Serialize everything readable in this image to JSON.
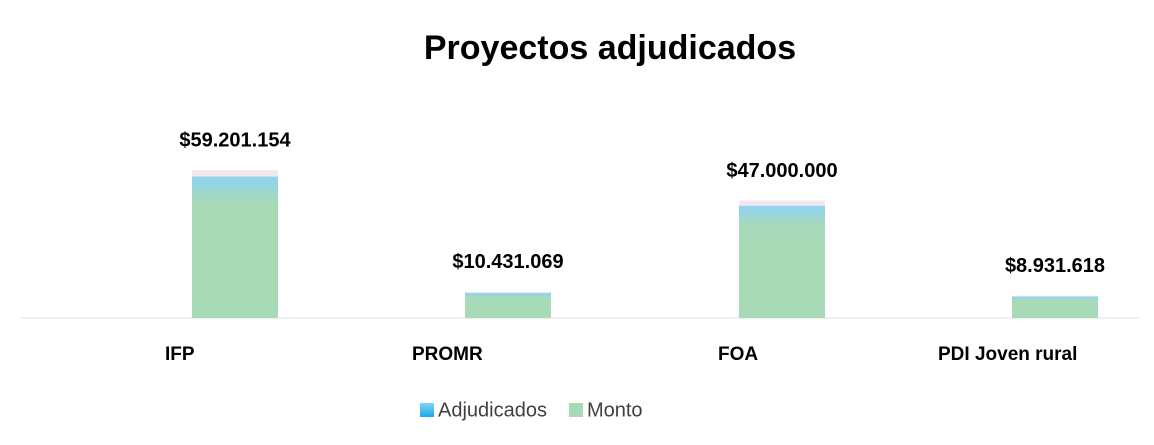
{
  "chart_data": {
    "type": "bar",
    "title": "Proyectos adjudicados",
    "categories": [
      "IFP",
      "PROMR",
      "FOA",
      "PDI Joven rural"
    ],
    "series": [
      {
        "name": "Adjudicados",
        "color": "#3cc0ee",
        "values": [
          null,
          null,
          null,
          null
        ]
      },
      {
        "name": "Monto",
        "color": "#a8dab8",
        "values": [
          59201154,
          10431069,
          47000000,
          8931618
        ],
        "value_labels": [
          "$59.201.154",
          "$10.431.069",
          "$47.000.000",
          "$8.931.618"
        ]
      }
    ]
  }
}
